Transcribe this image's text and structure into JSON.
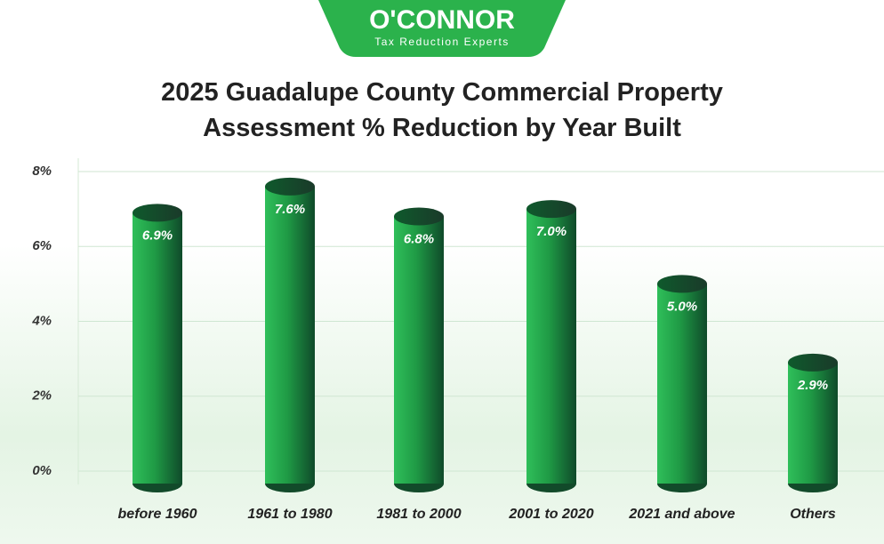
{
  "logo": {
    "name": "O'CONNOR",
    "tagline": "Tax Reduction Experts"
  },
  "chart_data": {
    "type": "bar",
    "title": "2025 Guadalupe County Commercial Property Assessment % Reduction by Year Built",
    "categories": [
      "before 1960",
      "1961 to 1980",
      "1981 to 2000",
      "2001 to 2020",
      "2021 and above",
      "Others"
    ],
    "values": [
      6.9,
      7.6,
      6.8,
      7.0,
      5.0,
      2.9
    ],
    "value_labels": [
      "6.9%",
      "7.6%",
      "6.8%",
      "7.0%",
      "5.0%",
      "2.9%"
    ],
    "color": "#1f9a45",
    "ylim": [
      0,
      8
    ],
    "yticks": [
      {
        "value": 0,
        "label": "0%"
      },
      {
        "value": 2,
        "label": "2%"
      },
      {
        "value": 4,
        "label": "4%"
      },
      {
        "value": 6,
        "label": "6%"
      },
      {
        "value": 8,
        "label": "8%"
      }
    ],
    "grid": true
  }
}
